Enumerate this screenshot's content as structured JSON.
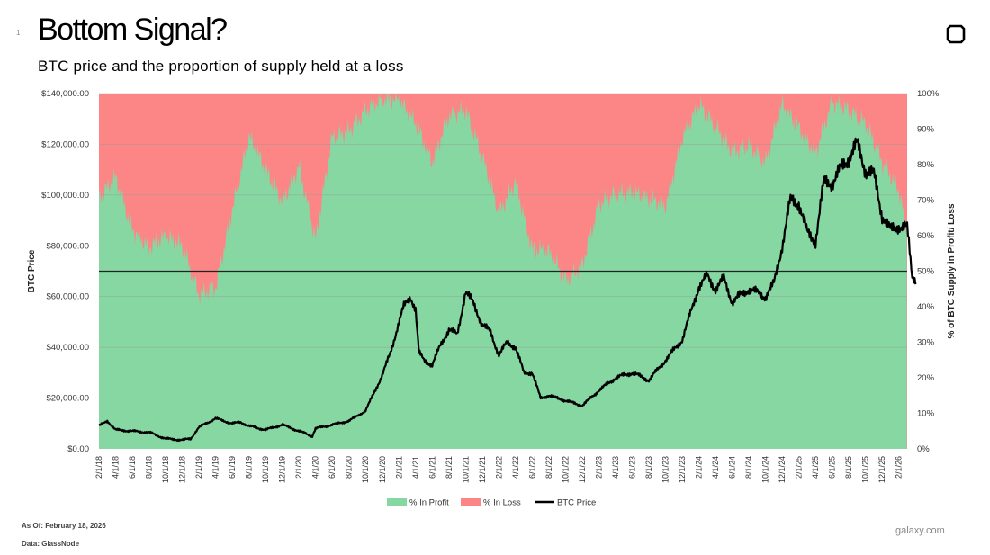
{
  "page": {
    "number": "1",
    "title": "Bottom Signal?",
    "subtitle": "BTC price and the proportion of supply held at a loss",
    "as_of": "As Of: February 18, 2026",
    "source": "Data: GlassNode",
    "brand": "galaxy.com",
    "logo_icon": "galaxy-logo-icon"
  },
  "chart_data": {
    "type": "area",
    "ylabel": "BTC Price",
    "y2label": "% of BTC Supply in Profit/ Loss",
    "ylim": [
      0,
      140000
    ],
    "y2lim": [
      0,
      100
    ],
    "y_ticks": [
      "$0.00",
      "$20,000.00",
      "$40,000.00",
      "$60,000.00",
      "$80,000.00",
      "$100,000.00",
      "$120,000.00",
      "$140,000.00"
    ],
    "y2_ticks": [
      "0%",
      "10%",
      "20%",
      "30%",
      "40%",
      "50%",
      "60%",
      "70%",
      "80%",
      "90%",
      "100%"
    ],
    "x_ticks": [
      "2/1/18",
      "4/1/18",
      "6/1/18",
      "8/1/18",
      "10/1/18",
      "12/1/18",
      "2/1/19",
      "4/1/19",
      "6/1/19",
      "8/1/19",
      "10/1/19",
      "12/1/19",
      "2/1/20",
      "4/1/20",
      "6/1/20",
      "8/1/20",
      "10/1/20",
      "12/1/20",
      "2/1/21",
      "4/1/21",
      "6/1/21",
      "8/1/21",
      "10/1/21",
      "12/1/21",
      "2/1/22",
      "4/1/22",
      "6/1/22",
      "8/1/22",
      "10/1/22",
      "12/1/22",
      "2/1/23",
      "4/1/23",
      "6/1/23",
      "8/1/23",
      "10/1/23",
      "12/1/23",
      "2/1/24",
      "4/1/24",
      "6/1/24",
      "8/1/24",
      "10/1/24",
      "12/1/24",
      "2/1/25",
      "4/1/25",
      "6/1/25",
      "8/1/25",
      "10/1/25",
      "12/1/25",
      "2/1/26"
    ],
    "reference_line": {
      "axis": "y2",
      "value": 50
    },
    "legend": {
      "position": "bottom",
      "entries": [
        "% In Profit",
        "% In Loss",
        "BTC Price"
      ]
    },
    "colors": {
      "profit": "#86d7a2",
      "loss": "#fc8686",
      "price": "#000000",
      "grid": "#9a9a9a"
    },
    "series": [
      {
        "name": "% In Profit",
        "axis": "y2",
        "x": [
          0,
          1,
          2,
          3,
          4,
          5,
          6,
          7,
          8,
          9,
          10,
          11,
          12,
          13,
          14,
          15,
          16,
          17,
          18,
          19,
          20,
          21,
          22,
          23,
          24,
          25,
          26,
          27,
          28,
          29,
          30,
          31,
          32,
          33,
          34,
          35,
          36,
          37,
          38,
          39,
          40,
          41,
          42,
          43,
          44,
          45,
          46,
          47,
          48,
          48.5
        ],
        "values": [
          70,
          77,
          62,
          56,
          60,
          58,
          43,
          45,
          68,
          88,
          78,
          70,
          80,
          58,
          88,
          90,
          95,
          98,
          99,
          92,
          80,
          94,
          96,
          82,
          66,
          76,
          56,
          55,
          48,
          52,
          68,
          72,
          73,
          70,
          68,
          88,
          97,
          90,
          84,
          86,
          80,
          97,
          91,
          83,
          97,
          96,
          92,
          80,
          73,
          62
        ]
      },
      {
        "name": "BTC Price",
        "axis": "y",
        "x": [
          0,
          0.5,
          1,
          2,
          3,
          4,
          5,
          5.5,
          6,
          7,
          8,
          8.5,
          9,
          10,
          11,
          12,
          12.8,
          13,
          14,
          15,
          16,
          17,
          17.5,
          18,
          18.3,
          18.7,
          19,
          19.2,
          19.5,
          20,
          20.5,
          21,
          21.5,
          22,
          22.5,
          23,
          23.5,
          24,
          24.5,
          25,
          25.5,
          26,
          26.5,
          27,
          27.5,
          28,
          29,
          30,
          31,
          32,
          33,
          34,
          35,
          36,
          36.5,
          37,
          37.5,
          38,
          39,
          40,
          40.5,
          41,
          41.5,
          42,
          42.5,
          43,
          43.5,
          44,
          44.5,
          45,
          45.5,
          46,
          46.5,
          47,
          47.5,
          48,
          48.5,
          48.8,
          49
        ],
        "values": [
          9000,
          11000,
          7500,
          7000,
          6500,
          4000,
          3500,
          4000,
          8500,
          12000,
          10000,
          10500,
          9000,
          7500,
          9500,
          7000,
          5000,
          8000,
          9500,
          11000,
          15000,
          29000,
          38000,
          50000,
          56000,
          60000,
          55000,
          38000,
          35000,
          33000,
          41000,
          47000,
          45000,
          62000,
          57000,
          49000,
          46000,
          37000,
          42000,
          40000,
          30000,
          30000,
          20000,
          21000,
          20000,
          19000,
          17000,
          23000,
          28000,
          30000,
          27000,
          35000,
          43000,
          64000,
          68000,
          63000,
          67000,
          58000,
          63000,
          60000,
          65000,
          80000,
          98000,
          97000,
          85000,
          82000,
          105000,
          105000,
          110000,
          115000,
          120000,
          110000,
          108000,
          92000,
          86000,
          88000,
          87000,
          68000,
          67000
        ]
      }
    ]
  }
}
